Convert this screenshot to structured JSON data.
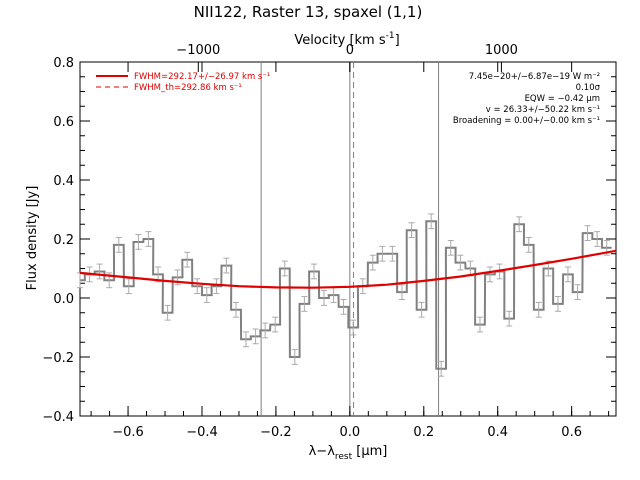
{
  "chart_data": {
    "type": "line",
    "title": "NII122, Raster 13, spaxel (1,1)",
    "xlabel": "λ−λ_rest [μm]",
    "xlabel_main": "λ−λ",
    "xlabel_sub": "rest",
    "xlabel_unit": " [μm]",
    "ylabel": "Flux density [Jy]",
    "top_axis_label": "Velocity [km s⁻¹]",
    "top_axis_label_main": "Velocity [km s",
    "top_axis_label_sup": "-1",
    "top_axis_label_end": "]",
    "xlim": [
      -0.73,
      0.72
    ],
    "ylim": [
      -0.4,
      0.8
    ],
    "xticks": [
      -0.6,
      -0.4,
      -0.2,
      0.0,
      0.2,
      0.4,
      0.6
    ],
    "xtick_labels": [
      "−0.6",
      "−0.4",
      "−0.2",
      "0.0",
      "0.2",
      "0.4",
      "0.6"
    ],
    "yticks": [
      -0.4,
      -0.2,
      0.0,
      0.2,
      0.4,
      0.6,
      0.8
    ],
    "ytick_labels": [
      "−0.4",
      "−0.2",
      "0.0",
      "0.2",
      "0.4",
      "0.6",
      "0.8"
    ],
    "top_ticks_velocity": [
      -1000,
      0,
      1000
    ],
    "top_tick_labels": [
      "−1000",
      "0",
      "1000"
    ],
    "top_tick_microns": [
      -0.41,
      0.0,
      0.41
    ],
    "vertical_lines": [
      {
        "x": -0.24,
        "style": "solid",
        "color": "#808080"
      },
      {
        "x": 0.0,
        "style": "solid",
        "color": "#808080"
      },
      {
        "x": 0.01,
        "style": "dashed",
        "color": "#808080"
      },
      {
        "x": 0.24,
        "style": "solid",
        "color": "#808080"
      }
    ],
    "series": [
      {
        "name": "",
        "style": "step",
        "color": "#808080",
        "bin_width": 0.0264,
        "x": [
          -0.73,
          -0.704,
          -0.677,
          -0.651,
          -0.625,
          -0.598,
          -0.572,
          -0.545,
          -0.519,
          -0.493,
          -0.466,
          -0.44,
          -0.413,
          -0.387,
          -0.361,
          -0.334,
          -0.308,
          -0.281,
          -0.255,
          -0.229,
          -0.202,
          -0.176,
          -0.149,
          -0.123,
          -0.097,
          -0.07,
          -0.044,
          -0.017,
          0.009,
          0.035,
          0.062,
          0.088,
          0.115,
          0.141,
          0.167,
          0.194,
          0.22,
          0.247,
          0.273,
          0.299,
          0.326,
          0.352,
          0.379,
          0.405,
          0.431,
          0.458,
          0.484,
          0.511,
          0.537,
          0.563,
          0.59,
          0.616,
          0.643,
          0.669,
          0.695
        ],
        "y": [
          0.06,
          0.08,
          0.09,
          0.06,
          0.18,
          0.04,
          0.19,
          0.2,
          0.08,
          -0.05,
          0.07,
          0.13,
          0.04,
          0.01,
          0.04,
          0.11,
          -0.04,
          -0.14,
          -0.13,
          -0.11,
          -0.09,
          0.1,
          -0.2,
          -0.02,
          0.09,
          0.0,
          0.01,
          -0.03,
          -0.1,
          0.04,
          0.12,
          0.15,
          0.15,
          0.02,
          0.23,
          -0.04,
          0.26,
          -0.24,
          0.17,
          0.12,
          0.1,
          -0.09,
          0.08,
          0.09,
          -0.07,
          0.25,
          0.18,
          -0.04,
          0.1,
          -0.02,
          0.08,
          0.02,
          0.22,
          0.2,
          0.17
        ],
        "errors": [
          0.025,
          0.025,
          0.025,
          0.025,
          0.025,
          0.025,
          0.025,
          0.025,
          0.025,
          0.025,
          0.025,
          0.025,
          0.025,
          0.025,
          0.025,
          0.025,
          0.025,
          0.025,
          0.025,
          0.025,
          0.025,
          0.025,
          0.025,
          0.025,
          0.025,
          0.025,
          0.025,
          0.025,
          0.025,
          0.025,
          0.025,
          0.025,
          0.025,
          0.025,
          0.025,
          0.025,
          0.025,
          0.025,
          0.025,
          0.025,
          0.025,
          0.025,
          0.025,
          0.025,
          0.025,
          0.025,
          0.025,
          0.025,
          0.025,
          0.025,
          0.025,
          0.025,
          0.025,
          0.025,
          0.025
        ]
      },
      {
        "name": "FWHM=292.17+/−26.97 km s⁻¹",
        "style": "solid",
        "color": "#e00000",
        "x": [
          -0.73,
          -0.6,
          -0.5,
          -0.4,
          -0.3,
          -0.2,
          -0.1,
          0.0,
          0.1,
          0.2,
          0.3,
          0.4,
          0.5,
          0.6,
          0.72
        ],
        "y": [
          0.085,
          0.07,
          0.058,
          0.048,
          0.04,
          0.036,
          0.035,
          0.038,
          0.045,
          0.058,
          0.073,
          0.092,
          0.112,
          0.133,
          0.16
        ]
      }
    ],
    "legend": [
      {
        "label": "FWHM=292.17+/−26.97 km s⁻¹",
        "color": "#e00000",
        "style": "solid"
      },
      {
        "label": "FWHM_th=292.86 km s⁻¹",
        "color": "#e00000",
        "style": "dashed"
      }
    ],
    "legend_placement": "top-left",
    "annotations": [
      "7.45e−20+/−6.87e−19 W m⁻²",
      "0.10σ",
      "EQW = −0.42 μm",
      "v = 26.33+/−50.22 km s⁻¹",
      "Broadening = 0.00+/−0.00 km s⁻¹"
    ],
    "annotation_placement": "top-right",
    "grid": false
  }
}
